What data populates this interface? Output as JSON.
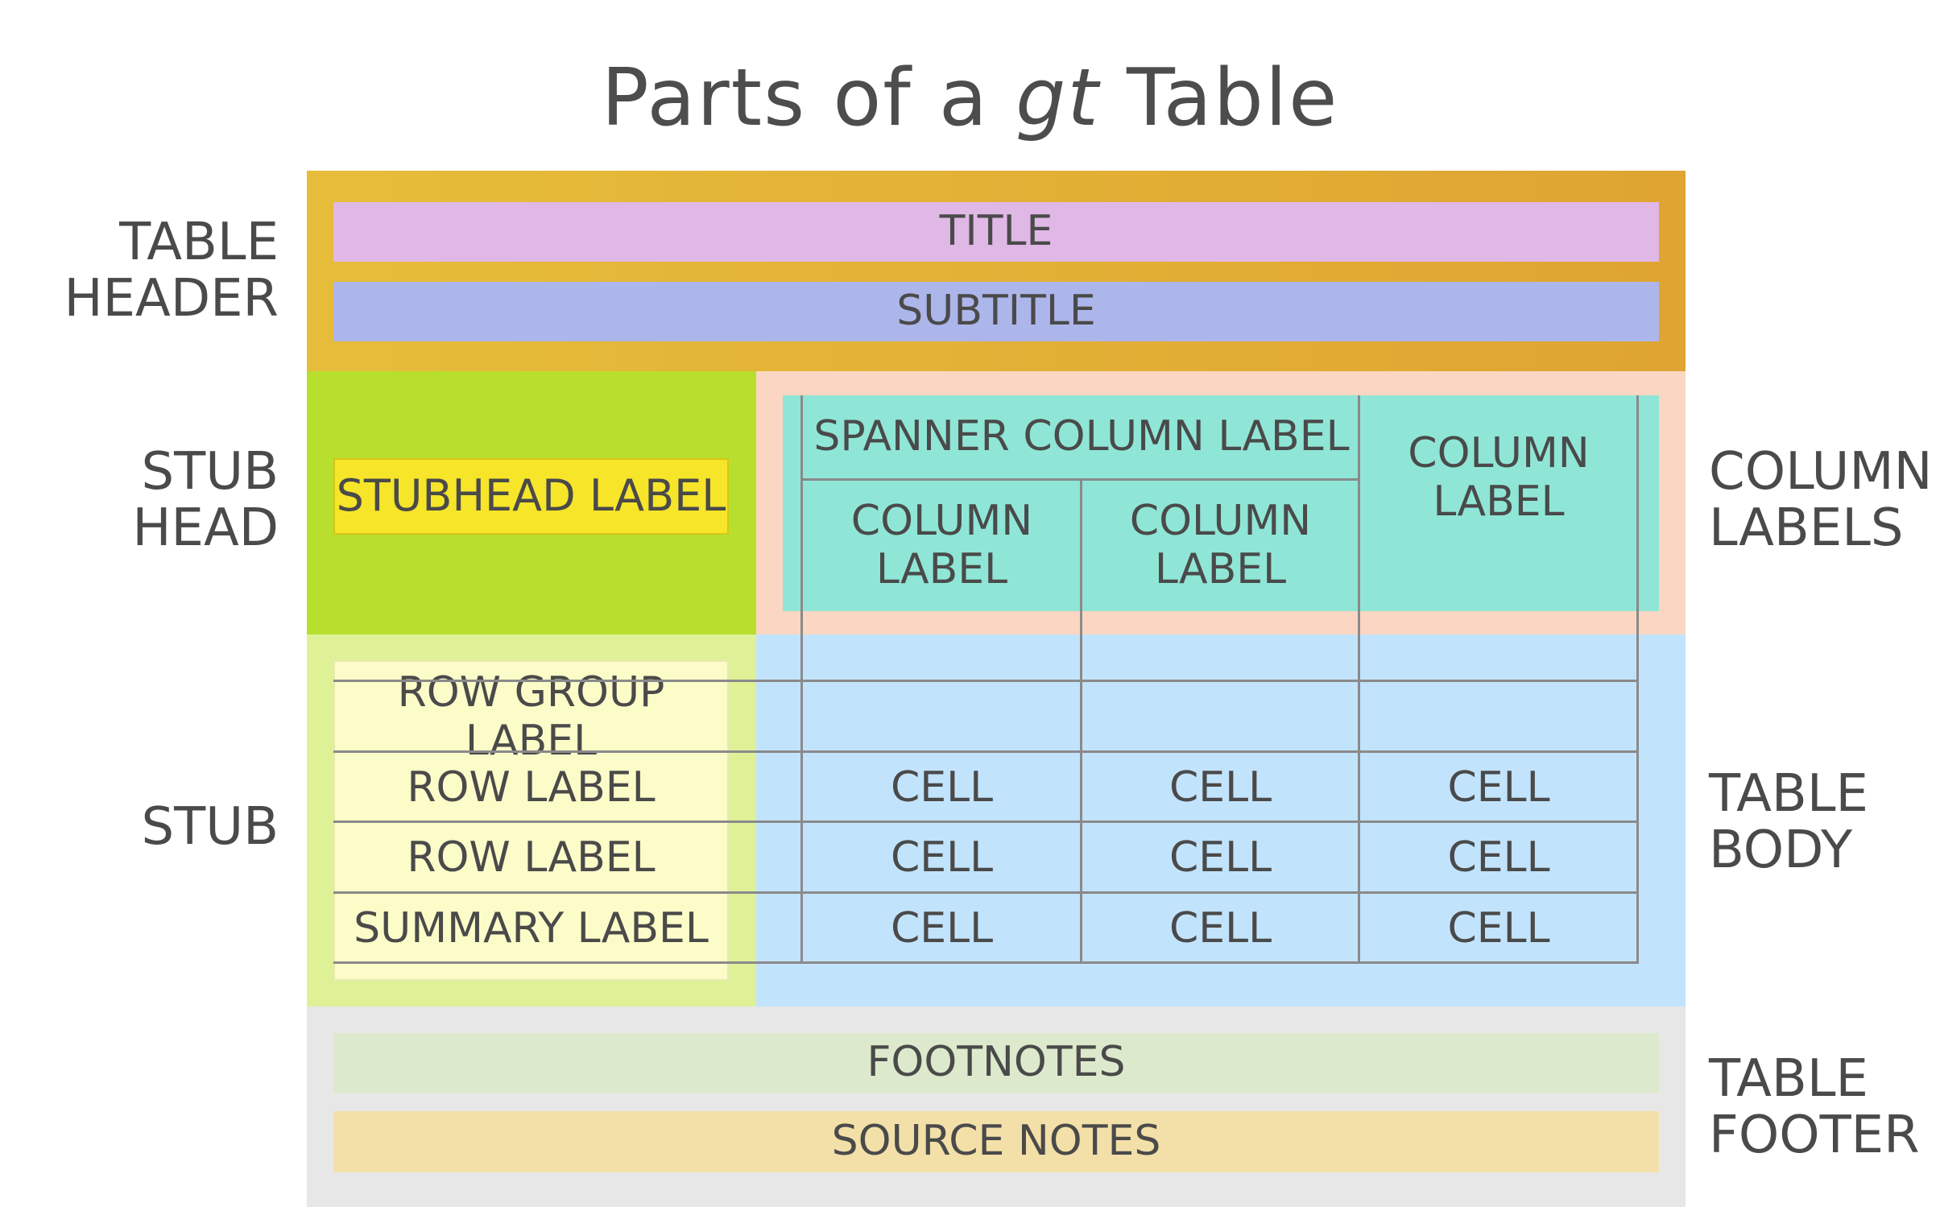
{
  "title_prefix": "Parts of a",
  "title_italic": "gt",
  "title_suffix": "Table",
  "side_labels": {
    "table_header": [
      "TABLE",
      "HEADER"
    ],
    "stub_head": [
      "STUB",
      "HEAD"
    ],
    "stub": "STUB",
    "column_labels": [
      "COLUMN",
      "LABELS"
    ],
    "table_body": [
      "TABLE",
      "BODY"
    ],
    "table_footer": [
      "TABLE",
      "FOOTER"
    ]
  },
  "header": {
    "title": "TITLE",
    "subtitle": "SUBTITLE"
  },
  "stubhead_label": "STUBHEAD LABEL",
  "spanner_label": "SPANNER COLUMN LABEL",
  "column_labels": [
    [
      "COLUMN",
      "LABEL"
    ],
    [
      "COLUMN",
      "LABEL"
    ],
    [
      "COLUMN",
      "LABEL"
    ]
  ],
  "stub_rows": [
    "ROW GROUP LABEL",
    "ROW LABEL",
    "ROW LABEL",
    "SUMMARY LABEL"
  ],
  "cell_label": "CELL",
  "cells": [
    [
      "CELL",
      "CELL",
      "CELL"
    ],
    [
      "CELL",
      "CELL",
      "CELL"
    ],
    [
      "CELL",
      "CELL",
      "CELL"
    ]
  ],
  "footer": {
    "footnotes": "FOOTNOTES",
    "source_notes": "SOURCE NOTES"
  },
  "colors": {
    "header_bg": "#e2b03a",
    "title_bar": "#e0b8e6",
    "subtitle_bar": "#adb6ea",
    "stub_head_bg": "#b8df2e",
    "stubhead_label_bg": "#f6e528",
    "column_labels_bg": "#fbd6c2",
    "column_labels_inner": "#8fe6d6",
    "stub_bg": "#def197",
    "stub_inner": "#fcfcc9",
    "body_bg": "#c2e3fc",
    "footer_bg": "#e7e7e7",
    "footnotes_bar": "#dde9cc",
    "source_notes_bar": "#f3e0a8"
  }
}
